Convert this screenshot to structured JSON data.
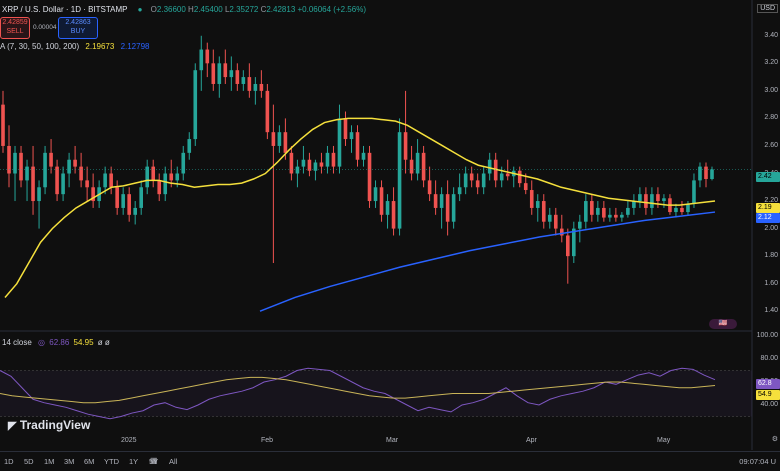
{
  "header": {
    "title": "XRP / U.S. Dollar · 1D · BITSTAMP",
    "ohlc": [
      {
        "k": "O",
        "v": "2.36600"
      },
      {
        "k": "H",
        "v": "2.45400"
      },
      {
        "k": "L",
        "v": "2.35272"
      },
      {
        "k": "C",
        "v": "2.42813"
      },
      {
        "k": "",
        "v": "+0.06064 (+2.56%)"
      }
    ],
    "sell_price": "2.42859",
    "sell_label": "SELL",
    "spread": "0.00004",
    "buy_price": "2.42863",
    "buy_label": "BUY",
    "ma_label": "A (7, 30, 50, 100, 200)",
    "ma_val_1": "2.19673",
    "ma_val_2": "2.12798",
    "currency": "USD",
    "ma_colors": [
      "#f5e03c",
      "#2962ff"
    ]
  },
  "price_axis": {
    "labels": [
      "3.40",
      "3.20",
      "3.00",
      "2.80",
      "2.60",
      "2.40",
      "2.20",
      "2.00",
      "1.80",
      "1.60",
      "1.40"
    ],
    "tag_close": "2.42",
    "tag_ma1": "2.19",
    "tag_ma2": "2.12"
  },
  "rsi": {
    "label": "14 close",
    "val_1": "62.86",
    "val_2": "54.95",
    "extra": "ø ø",
    "axis_labels": [
      "100.00",
      "80.00",
      "60.00",
      "40.00"
    ],
    "tag_1": "62.8",
    "tag_2": "54.9"
  },
  "x_axis": {
    "labels": [
      "2025",
      "Feb",
      "Mar",
      "Apr",
      "May"
    ],
    "time": "09:07:04 U"
  },
  "timeframes": [
    "1D",
    "5D",
    "1M",
    "3M",
    "6M",
    "YTD",
    "1Y",
    "5Y",
    "All"
  ],
  "brand": "TradingView",
  "colors": {
    "up": "#26a69a",
    "down": "#ef5350",
    "ma30": "#f5e03c",
    "ma200": "#2962ff",
    "rsi": "#7e57c2",
    "rsi_ma": "#c9b458"
  },
  "chart_data": {
    "type": "candlestick",
    "y_range": [
      1.3,
      3.5
    ],
    "candles": [
      {
        "o": 2.9,
        "h": 3.0,
        "l": 2.55,
        "c": 2.6
      },
      {
        "o": 2.6,
        "h": 2.75,
        "l": 2.3,
        "c": 2.4
      },
      {
        "o": 2.4,
        "h": 2.6,
        "l": 2.2,
        "c": 2.55
      },
      {
        "o": 2.55,
        "h": 2.6,
        "l": 2.3,
        "c": 2.35
      },
      {
        "o": 2.35,
        "h": 2.5,
        "l": 2.2,
        "c": 2.45
      },
      {
        "o": 2.45,
        "h": 2.6,
        "l": 2.1,
        "c": 2.2
      },
      {
        "o": 2.2,
        "h": 2.35,
        "l": 2.0,
        "c": 2.3
      },
      {
        "o": 2.3,
        "h": 2.6,
        "l": 2.25,
        "c": 2.55
      },
      {
        "o": 2.55,
        "h": 2.65,
        "l": 2.4,
        "c": 2.45
      },
      {
        "o": 2.45,
        "h": 2.5,
        "l": 2.2,
        "c": 2.25
      },
      {
        "o": 2.25,
        "h": 2.45,
        "l": 2.2,
        "c": 2.4
      },
      {
        "o": 2.4,
        "h": 2.55,
        "l": 2.3,
        "c": 2.5
      },
      {
        "o": 2.5,
        "h": 2.6,
        "l": 2.4,
        "c": 2.45
      },
      {
        "o": 2.45,
        "h": 2.55,
        "l": 2.3,
        "c": 2.35
      },
      {
        "o": 2.35,
        "h": 2.45,
        "l": 2.2,
        "c": 2.3
      },
      {
        "o": 2.3,
        "h": 2.4,
        "l": 2.15,
        "c": 2.2
      },
      {
        "o": 2.2,
        "h": 2.35,
        "l": 2.15,
        "c": 2.3
      },
      {
        "o": 2.3,
        "h": 2.45,
        "l": 2.25,
        "c": 2.4
      },
      {
        "o": 2.4,
        "h": 2.45,
        "l": 2.25,
        "c": 2.3
      },
      {
        "o": 2.3,
        "h": 2.35,
        "l": 2.1,
        "c": 2.15
      },
      {
        "o": 2.15,
        "h": 2.3,
        "l": 2.1,
        "c": 2.25
      },
      {
        "o": 2.25,
        "h": 2.3,
        "l": 2.05,
        "c": 2.1
      },
      {
        "o": 2.1,
        "h": 2.2,
        "l": 2.03,
        "c": 2.15
      },
      {
        "o": 2.15,
        "h": 2.35,
        "l": 2.1,
        "c": 2.3
      },
      {
        "o": 2.3,
        "h": 2.5,
        "l": 2.25,
        "c": 2.45
      },
      {
        "o": 2.45,
        "h": 2.5,
        "l": 2.3,
        "c": 2.35
      },
      {
        "o": 2.35,
        "h": 2.4,
        "l": 2.2,
        "c": 2.25
      },
      {
        "o": 2.25,
        "h": 2.45,
        "l": 2.2,
        "c": 2.4
      },
      {
        "o": 2.4,
        "h": 2.5,
        "l": 2.3,
        "c": 2.35
      },
      {
        "o": 2.35,
        "h": 2.45,
        "l": 2.3,
        "c": 2.4
      },
      {
        "o": 2.4,
        "h": 2.6,
        "l": 2.35,
        "c": 2.55
      },
      {
        "o": 2.55,
        "h": 2.7,
        "l": 2.5,
        "c": 2.65
      },
      {
        "o": 2.65,
        "h": 3.2,
        "l": 2.6,
        "c": 3.15
      },
      {
        "o": 3.15,
        "h": 3.4,
        "l": 3.0,
        "c": 3.3
      },
      {
        "o": 3.3,
        "h": 3.35,
        "l": 3.1,
        "c": 3.2
      },
      {
        "o": 3.2,
        "h": 3.3,
        "l": 3.0,
        "c": 3.05
      },
      {
        "o": 3.05,
        "h": 3.25,
        "l": 2.95,
        "c": 3.2
      },
      {
        "o": 3.2,
        "h": 3.3,
        "l": 3.05,
        "c": 3.1
      },
      {
        "o": 3.1,
        "h": 3.25,
        "l": 3.0,
        "c": 3.15
      },
      {
        "o": 3.15,
        "h": 3.2,
        "l": 3.0,
        "c": 3.05
      },
      {
        "o": 3.05,
        "h": 3.15,
        "l": 3.0,
        "c": 3.1
      },
      {
        "o": 3.1,
        "h": 3.2,
        "l": 2.95,
        "c": 3.0
      },
      {
        "o": 3.0,
        "h": 3.1,
        "l": 2.9,
        "c": 3.05
      },
      {
        "o": 3.05,
        "h": 3.15,
        "l": 2.95,
        "c": 3.0
      },
      {
        "o": 3.0,
        "h": 3.05,
        "l": 2.65,
        "c": 2.7
      },
      {
        "o": 2.7,
        "h": 2.9,
        "l": 1.75,
        "c": 2.6
      },
      {
        "o": 2.6,
        "h": 2.75,
        "l": 2.55,
        "c": 2.7
      },
      {
        "o": 2.7,
        "h": 2.8,
        "l": 2.5,
        "c": 2.55
      },
      {
        "o": 2.55,
        "h": 2.6,
        "l": 2.35,
        "c": 2.4
      },
      {
        "o": 2.4,
        "h": 2.5,
        "l": 2.3,
        "c": 2.45
      },
      {
        "o": 2.45,
        "h": 2.6,
        "l": 2.4,
        "c": 2.5
      },
      {
        "o": 2.5,
        "h": 2.55,
        "l": 2.38,
        "c": 2.42
      },
      {
        "o": 2.42,
        "h": 2.5,
        "l": 2.35,
        "c": 2.48
      },
      {
        "o": 2.48,
        "h": 2.55,
        "l": 2.4,
        "c": 2.45
      },
      {
        "o": 2.45,
        "h": 2.6,
        "l": 2.4,
        "c": 2.55
      },
      {
        "o": 2.55,
        "h": 2.6,
        "l": 2.4,
        "c": 2.45
      },
      {
        "o": 2.45,
        "h": 2.9,
        "l": 2.4,
        "c": 2.8
      },
      {
        "o": 2.8,
        "h": 2.85,
        "l": 2.6,
        "c": 2.65
      },
      {
        "o": 2.65,
        "h": 2.75,
        "l": 2.55,
        "c": 2.7
      },
      {
        "o": 2.7,
        "h": 2.75,
        "l": 2.45,
        "c": 2.5
      },
      {
        "o": 2.5,
        "h": 2.6,
        "l": 2.45,
        "c": 2.55
      },
      {
        "o": 2.55,
        "h": 2.6,
        "l": 2.15,
        "c": 2.2
      },
      {
        "o": 2.2,
        "h": 2.35,
        "l": 2.15,
        "c": 2.3
      },
      {
        "o": 2.3,
        "h": 2.35,
        "l": 2.05,
        "c": 2.1
      },
      {
        "o": 2.1,
        "h": 2.25,
        "l": 2.0,
        "c": 2.2
      },
      {
        "o": 2.2,
        "h": 2.3,
        "l": 1.95,
        "c": 2.0
      },
      {
        "o": 2.0,
        "h": 2.8,
        "l": 1.95,
        "c": 2.7
      },
      {
        "o": 2.7,
        "h": 3.0,
        "l": 2.4,
        "c": 2.5
      },
      {
        "o": 2.5,
        "h": 2.6,
        "l": 2.35,
        "c": 2.4
      },
      {
        "o": 2.4,
        "h": 2.65,
        "l": 2.35,
        "c": 2.55
      },
      {
        "o": 2.55,
        "h": 2.6,
        "l": 2.3,
        "c": 2.35
      },
      {
        "o": 2.35,
        "h": 2.45,
        "l": 2.2,
        "c": 2.25
      },
      {
        "o": 2.25,
        "h": 2.35,
        "l": 2.1,
        "c": 2.15
      },
      {
        "o": 2.15,
        "h": 2.3,
        "l": 2.0,
        "c": 2.25
      },
      {
        "o": 2.25,
        "h": 2.35,
        "l": 1.95,
        "c": 2.05
      },
      {
        "o": 2.05,
        "h": 2.3,
        "l": 2.0,
        "c": 2.25
      },
      {
        "o": 2.25,
        "h": 2.4,
        "l": 2.2,
        "c": 2.3
      },
      {
        "o": 2.3,
        "h": 2.45,
        "l": 2.25,
        "c": 2.4
      },
      {
        "o": 2.4,
        "h": 2.45,
        "l": 2.3,
        "c": 2.35
      },
      {
        "o": 2.35,
        "h": 2.4,
        "l": 2.25,
        "c": 2.3
      },
      {
        "o": 2.3,
        "h": 2.45,
        "l": 2.25,
        "c": 2.4
      },
      {
        "o": 2.4,
        "h": 2.55,
        "l": 2.35,
        "c": 2.5
      },
      {
        "o": 2.5,
        "h": 2.55,
        "l": 2.3,
        "c": 2.35
      },
      {
        "o": 2.35,
        "h": 2.45,
        "l": 2.3,
        "c": 2.4
      },
      {
        "o": 2.4,
        "h": 2.5,
        "l": 2.35,
        "c": 2.38
      },
      {
        "o": 2.38,
        "h": 2.45,
        "l": 2.3,
        "c": 2.42
      },
      {
        "o": 2.42,
        "h": 2.45,
        "l": 2.3,
        "c": 2.33
      },
      {
        "o": 2.33,
        "h": 2.4,
        "l": 2.25,
        "c": 2.28
      },
      {
        "o": 2.28,
        "h": 2.35,
        "l": 2.1,
        "c": 2.15
      },
      {
        "o": 2.15,
        "h": 2.25,
        "l": 2.05,
        "c": 2.2
      },
      {
        "o": 2.2,
        "h": 2.25,
        "l": 2.0,
        "c": 2.05
      },
      {
        "o": 2.05,
        "h": 2.15,
        "l": 2.0,
        "c": 2.1
      },
      {
        "o": 2.1,
        "h": 2.15,
        "l": 1.95,
        "c": 2.0
      },
      {
        "o": 2.0,
        "h": 2.1,
        "l": 1.9,
        "c": 1.95
      },
      {
        "o": 1.95,
        "h": 2.0,
        "l": 1.6,
        "c": 1.8
      },
      {
        "o": 1.8,
        "h": 2.05,
        "l": 1.75,
        "c": 2.0
      },
      {
        "o": 2.0,
        "h": 2.1,
        "l": 1.9,
        "c": 2.05
      },
      {
        "o": 2.05,
        "h": 2.25,
        "l": 2.0,
        "c": 2.2
      },
      {
        "o": 2.2,
        "h": 2.25,
        "l": 2.05,
        "c": 2.1
      },
      {
        "o": 2.1,
        "h": 2.2,
        "l": 2.05,
        "c": 2.15
      },
      {
        "o": 2.15,
        "h": 2.2,
        "l": 2.05,
        "c": 2.08
      },
      {
        "o": 2.08,
        "h": 2.15,
        "l": 2.05,
        "c": 2.1
      },
      {
        "o": 2.1,
        "h": 2.15,
        "l": 2.05,
        "c": 2.08
      },
      {
        "o": 2.08,
        "h": 2.12,
        "l": 2.05,
        "c": 2.1
      },
      {
        "o": 2.1,
        "h": 2.2,
        "l": 2.08,
        "c": 2.15
      },
      {
        "o": 2.15,
        "h": 2.25,
        "l": 2.1,
        "c": 2.2
      },
      {
        "o": 2.2,
        "h": 2.3,
        "l": 2.15,
        "c": 2.25
      },
      {
        "o": 2.25,
        "h": 2.3,
        "l": 2.1,
        "c": 2.15
      },
      {
        "o": 2.15,
        "h": 2.3,
        "l": 2.1,
        "c": 2.25
      },
      {
        "o": 2.25,
        "h": 2.3,
        "l": 2.15,
        "c": 2.2
      },
      {
        "o": 2.2,
        "h": 2.25,
        "l": 2.15,
        "c": 2.22
      },
      {
        "o": 2.22,
        "h": 2.25,
        "l": 2.1,
        "c": 2.12
      },
      {
        "o": 2.12,
        "h": 2.18,
        "l": 2.08,
        "c": 2.15
      },
      {
        "o": 2.15,
        "h": 2.2,
        "l": 2.1,
        "c": 2.12
      },
      {
        "o": 2.12,
        "h": 2.2,
        "l": 2.1,
        "c": 2.18
      },
      {
        "o": 2.18,
        "h": 2.4,
        "l": 2.15,
        "c": 2.35
      },
      {
        "o": 2.35,
        "h": 2.48,
        "l": 2.3,
        "c": 2.45
      },
      {
        "o": 2.45,
        "h": 2.48,
        "l": 2.3,
        "c": 2.36
      },
      {
        "o": 2.36,
        "h": 2.45,
        "l": 2.35,
        "c": 2.43
      }
    ],
    "ma30": [
      1.5,
      1.6,
      1.75,
      1.9,
      2.0,
      2.08,
      2.15,
      2.2,
      2.25,
      2.3,
      2.31,
      2.33,
      2.35,
      2.35,
      2.33,
      2.32,
      2.3,
      2.31,
      2.32,
      2.32,
      2.33,
      2.36,
      2.4,
      2.48,
      2.57,
      2.65,
      2.72,
      2.77,
      2.79,
      2.8,
      2.8,
      2.8,
      2.79,
      2.78,
      2.75,
      2.7,
      2.65,
      2.6,
      2.55,
      2.5,
      2.46,
      2.44,
      2.42,
      2.4,
      2.38,
      2.36,
      2.33,
      2.3,
      2.28,
      2.26,
      2.24,
      2.22,
      2.21,
      2.2,
      2.19,
      2.18,
      2.17,
      2.17,
      2.18,
      2.19,
      2.2
    ],
    "ma200": [
      1.4,
      1.5,
      1.58,
      1.65,
      1.72,
      1.78,
      1.84,
      1.89,
      1.94,
      1.98,
      2.02,
      2.06,
      2.09,
      2.12
    ],
    "rsi": [
      70,
      65,
      55,
      45,
      42,
      40,
      38,
      35,
      32,
      30,
      28,
      30,
      33,
      35,
      40,
      42,
      38,
      36,
      40,
      45,
      48,
      50,
      52,
      55,
      60,
      62,
      65,
      70,
      72,
      71,
      70,
      65,
      60,
      55,
      52,
      50,
      45,
      40,
      35,
      38,
      36,
      34,
      40,
      42,
      45,
      50,
      55,
      48,
      42,
      40,
      45,
      48,
      50,
      52,
      55,
      60,
      58,
      62,
      66,
      68,
      65,
      70,
      72,
      71,
      66,
      62
    ],
    "rsi_ma": [
      50,
      48,
      47,
      46,
      45,
      44,
      43,
      42,
      42,
      43,
      44,
      46,
      48,
      50,
      52,
      54,
      56,
      58,
      60,
      62,
      63,
      64,
      64,
      63,
      62,
      60,
      58,
      56,
      54,
      52,
      50,
      48,
      47,
      46,
      46,
      47,
      48,
      49,
      50,
      50,
      50,
      50,
      51,
      52,
      53,
      54,
      55,
      56,
      57,
      58,
      59,
      60,
      60,
      59,
      58,
      57,
      56,
      55,
      55,
      56,
      57
    ]
  }
}
